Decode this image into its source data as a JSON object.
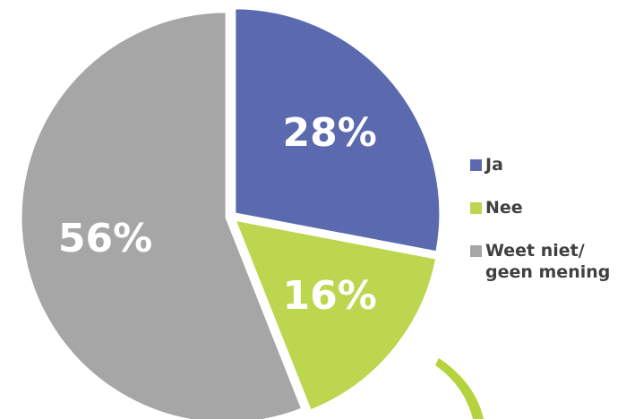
{
  "chart_data": {
    "type": "pie",
    "categories": [
      "Ja",
      "Nee",
      "Weet niet/ geen mening"
    ],
    "values": [
      28,
      16,
      56
    ],
    "value_labels": [
      "28%",
      "16%",
      "56%"
    ],
    "colors": [
      "#5b6aae",
      "#bcd64f",
      "#a6a6a6"
    ],
    "legend": "right"
  }
}
